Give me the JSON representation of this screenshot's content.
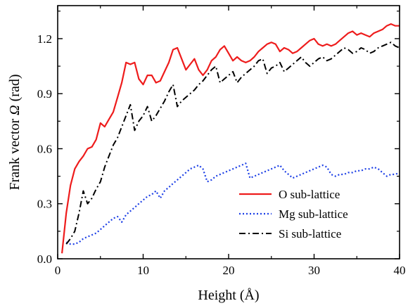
{
  "chart_data": {
    "type": "line",
    "xlabel": "Height (Å)",
    "ylabel_prefix": "Frank vector ",
    "ylabel_symbol": "Ω",
    "ylabel_suffix": " (rad)",
    "xlim": [
      0,
      40
    ],
    "ylim": [
      0.0,
      1.38
    ],
    "xticks": [
      0,
      10,
      20,
      30,
      40
    ],
    "xtick_labels": [
      "0",
      "10",
      "20",
      "30",
      "40"
    ],
    "yticks": [
      0.0,
      0.3,
      0.6,
      0.9,
      1.2
    ],
    "ytick_labels": [
      "0.0",
      "0.3",
      "0.6",
      "0.9",
      "1.2"
    ],
    "grid": false,
    "legend_position": "lower-right",
    "series": [
      {
        "name": "O sub-lattice",
        "color": "#ee1c1c",
        "dash": "solid",
        "x": [
          0.5,
          1.0,
          1.5,
          2.0,
          2.5,
          3.0,
          3.5,
          4.0,
          4.5,
          5.0,
          5.5,
          6.0,
          6.5,
          7.0,
          7.5,
          8.0,
          8.5,
          9.0,
          9.5,
          10.0,
          10.5,
          11.0,
          11.5,
          12.0,
          12.5,
          13.0,
          13.5,
          14.0,
          14.5,
          15.0,
          15.5,
          16.0,
          16.5,
          17.0,
          17.5,
          18.0,
          18.5,
          19.0,
          19.5,
          20.0,
          20.5,
          21.0,
          21.5,
          22.0,
          22.5,
          23.0,
          23.5,
          24.0,
          24.5,
          25.0,
          25.5,
          26.0,
          26.5,
          27.0,
          27.5,
          28.0,
          28.5,
          29.0,
          29.5,
          30.0,
          30.5,
          31.0,
          31.5,
          32.0,
          32.5,
          33.0,
          33.5,
          34.0,
          34.5,
          35.0,
          35.5,
          36.0,
          36.5,
          37.0,
          37.5,
          38.0,
          38.5,
          39.0,
          39.5,
          40.0
        ],
        "values": [
          0.03,
          0.25,
          0.4,
          0.49,
          0.53,
          0.56,
          0.6,
          0.61,
          0.65,
          0.74,
          0.72,
          0.76,
          0.8,
          0.88,
          0.96,
          1.07,
          1.06,
          1.07,
          0.98,
          0.95,
          1.0,
          1.0,
          0.96,
          0.97,
          1.02,
          1.07,
          1.14,
          1.15,
          1.09,
          1.03,
          1.06,
          1.09,
          1.03,
          1.0,
          1.03,
          1.08,
          1.1,
          1.14,
          1.16,
          1.12,
          1.08,
          1.1,
          1.08,
          1.07,
          1.08,
          1.1,
          1.13,
          1.15,
          1.17,
          1.18,
          1.17,
          1.13,
          1.15,
          1.14,
          1.12,
          1.13,
          1.15,
          1.17,
          1.19,
          1.2,
          1.17,
          1.16,
          1.17,
          1.16,
          1.17,
          1.19,
          1.21,
          1.23,
          1.24,
          1.22,
          1.23,
          1.22,
          1.21,
          1.23,
          1.24,
          1.25,
          1.27,
          1.28,
          1.27,
          1.27
        ]
      },
      {
        "name": "Mg sub-lattice",
        "color": "#1c3fe6",
        "dash": "dotted",
        "x": [
          1.0,
          1.5,
          2.0,
          2.5,
          3.0,
          3.5,
          4.0,
          4.5,
          5.0,
          5.5,
          6.0,
          6.5,
          7.0,
          7.5,
          8.0,
          8.5,
          9.0,
          9.5,
          10.0,
          10.5,
          11.0,
          11.5,
          12.0,
          12.5,
          13.0,
          13.5,
          14.0,
          14.5,
          15.0,
          15.5,
          16.0,
          16.5,
          17.0,
          17.5,
          18.0,
          18.5,
          19.0,
          19.5,
          20.0,
          20.5,
          21.0,
          21.5,
          22.0,
          22.5,
          23.0,
          23.5,
          24.0,
          24.5,
          25.0,
          25.5,
          26.0,
          26.5,
          27.0,
          27.5,
          28.0,
          28.5,
          29.0,
          29.5,
          30.0,
          30.5,
          31.0,
          31.5,
          32.0,
          32.5,
          33.0,
          33.5,
          34.0,
          34.5,
          35.0,
          35.5,
          36.0,
          36.5,
          37.0,
          37.5,
          38.0,
          38.5,
          39.0,
          39.5,
          40.0
        ],
        "values": [
          0.09,
          0.08,
          0.08,
          0.09,
          0.11,
          0.12,
          0.13,
          0.14,
          0.16,
          0.18,
          0.2,
          0.22,
          0.23,
          0.2,
          0.24,
          0.26,
          0.28,
          0.3,
          0.32,
          0.34,
          0.35,
          0.37,
          0.33,
          0.37,
          0.39,
          0.41,
          0.43,
          0.45,
          0.47,
          0.49,
          0.5,
          0.51,
          0.49,
          0.42,
          0.43,
          0.45,
          0.46,
          0.47,
          0.48,
          0.49,
          0.5,
          0.51,
          0.52,
          0.44,
          0.45,
          0.46,
          0.47,
          0.48,
          0.49,
          0.5,
          0.51,
          0.48,
          0.46,
          0.44,
          0.45,
          0.46,
          0.47,
          0.48,
          0.49,
          0.5,
          0.51,
          0.5,
          0.46,
          0.45,
          0.46,
          0.46,
          0.47,
          0.47,
          0.48,
          0.48,
          0.49,
          0.49,
          0.5,
          0.49,
          0.47,
          0.45,
          0.46,
          0.46,
          0.47
        ]
      },
      {
        "name": "Si sub-lattice",
        "color": "#000000",
        "dash": "dashdot",
        "x": [
          1.0,
          1.5,
          2.0,
          2.5,
          3.0,
          3.5,
          4.0,
          4.5,
          5.0,
          5.5,
          6.0,
          6.5,
          7.0,
          7.5,
          8.0,
          8.5,
          9.0,
          9.5,
          10.0,
          10.5,
          11.0,
          11.5,
          12.0,
          12.5,
          13.0,
          13.5,
          14.0,
          14.5,
          15.0,
          15.5,
          16.0,
          16.5,
          17.0,
          17.5,
          18.0,
          18.5,
          19.0,
          19.5,
          20.0,
          20.5,
          21.0,
          21.5,
          22.0,
          22.5,
          23.0,
          23.5,
          24.0,
          24.5,
          25.0,
          25.5,
          26.0,
          26.5,
          27.0,
          27.5,
          28.0,
          28.5,
          29.0,
          29.5,
          30.0,
          30.5,
          31.0,
          31.5,
          32.0,
          32.5,
          33.0,
          33.5,
          34.0,
          34.5,
          35.0,
          35.5,
          36.0,
          36.5,
          37.0,
          37.5,
          38.0,
          38.5,
          39.0,
          39.5,
          40.0
        ],
        "values": [
          0.08,
          0.11,
          0.15,
          0.25,
          0.37,
          0.3,
          0.33,
          0.38,
          0.42,
          0.5,
          0.56,
          0.62,
          0.66,
          0.72,
          0.78,
          0.84,
          0.7,
          0.75,
          0.78,
          0.83,
          0.75,
          0.78,
          0.82,
          0.86,
          0.91,
          0.95,
          0.83,
          0.86,
          0.88,
          0.9,
          0.92,
          0.95,
          0.97,
          1.0,
          1.03,
          1.05,
          0.96,
          0.98,
          1.0,
          1.02,
          0.96,
          0.99,
          1.01,
          1.03,
          1.05,
          1.08,
          1.09,
          1.01,
          1.04,
          1.05,
          1.07,
          1.02,
          1.04,
          1.06,
          1.08,
          1.1,
          1.07,
          1.05,
          1.07,
          1.09,
          1.1,
          1.08,
          1.09,
          1.11,
          1.13,
          1.15,
          1.14,
          1.12,
          1.13,
          1.15,
          1.14,
          1.12,
          1.13,
          1.15,
          1.16,
          1.17,
          1.18,
          1.16,
          1.15
        ]
      }
    ]
  }
}
